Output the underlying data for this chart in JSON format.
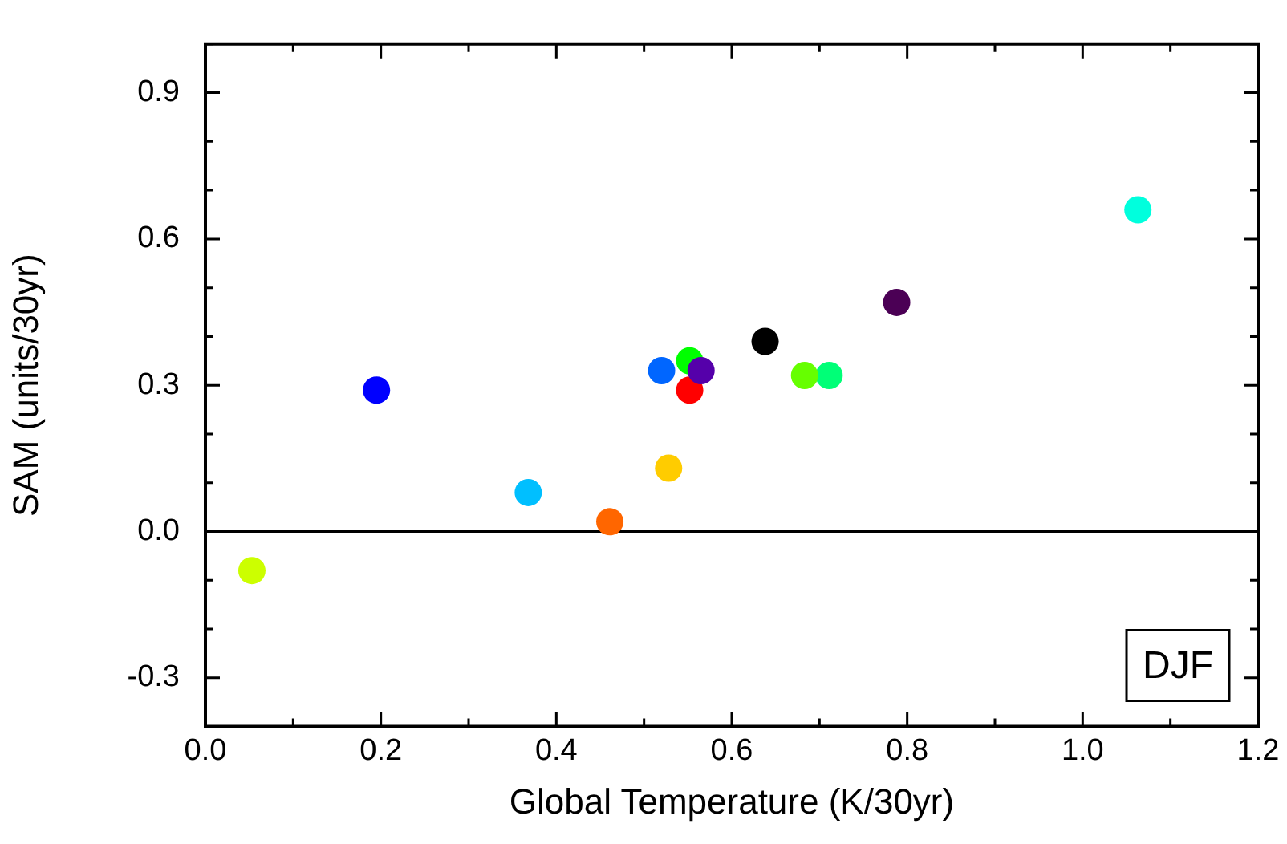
{
  "chart_data": {
    "type": "scatter",
    "xlabel": "Global Temperature (K/30yr)",
    "ylabel": "SAM (units/30yr)",
    "x": [
      0.053,
      0.195,
      0.368,
      0.461,
      0.528,
      0.52,
      0.565,
      0.552,
      0.552,
      0.638,
      0.683,
      0.711,
      0.788,
      1.063
    ],
    "values": [
      -0.08,
      0.29,
      0.08,
      0.02,
      0.13,
      0.33,
      0.33,
      0.35,
      0.29,
      0.39,
      0.32,
      0.32,
      0.47,
      0.66
    ],
    "colors": [
      "#ccff00",
      "#0000ff",
      "#00bfff",
      "#ff6600",
      "#ffcc00",
      "#0066ff",
      "#5500aa",
      "#00ff00",
      "#ff0000",
      "#000000",
      "#66ff00",
      "#00ff77",
      "#4b0055",
      "#00ffdd"
    ],
    "xlim": [
      0,
      1.2
    ],
    "xticks": [
      {
        "value": 0,
        "label": "0.0"
      },
      {
        "value": 0.1,
        "label": null
      },
      0.2,
      {
        "value": 0.3,
        "label": null
      },
      0.4,
      {
        "value": 0.5,
        "label": null
      },
      0.6,
      {
        "value": 0.7,
        "label": null
      },
      0.8,
      {
        "value": 0.9,
        "label": null
      },
      {
        "value": 1.0,
        "label": "1.0"
      },
      {
        "value": 1.1,
        "label": null
      },
      1.2
    ],
    "ylim": [
      -0.4,
      1.0
    ],
    "yticks": [
      {
        "value": -0.4,
        "label": null
      },
      -0.3,
      {
        "value": -0.2,
        "label": null
      },
      {
        "value": -0.1,
        "label": null
      },
      {
        "value": 0,
        "label": "0.0"
      },
      {
        "value": 0.1,
        "label": null
      },
      {
        "value": 0.2,
        "label": null
      },
      0.3,
      {
        "value": 0.4,
        "label": null
      },
      {
        "value": 0.5,
        "label": null
      },
      0.6,
      {
        "value": 0.7,
        "label": null
      },
      {
        "value": 0.8,
        "label": null
      },
      0.9,
      {
        "value": 1.0,
        "label": null
      }
    ],
    "ref_lines": [
      {
        "axis": "y",
        "value": 0,
        "color": "#000000"
      }
    ],
    "annotations": [
      "DJF"
    ],
    "marker": "circle",
    "grid": false,
    "legend": false
  }
}
